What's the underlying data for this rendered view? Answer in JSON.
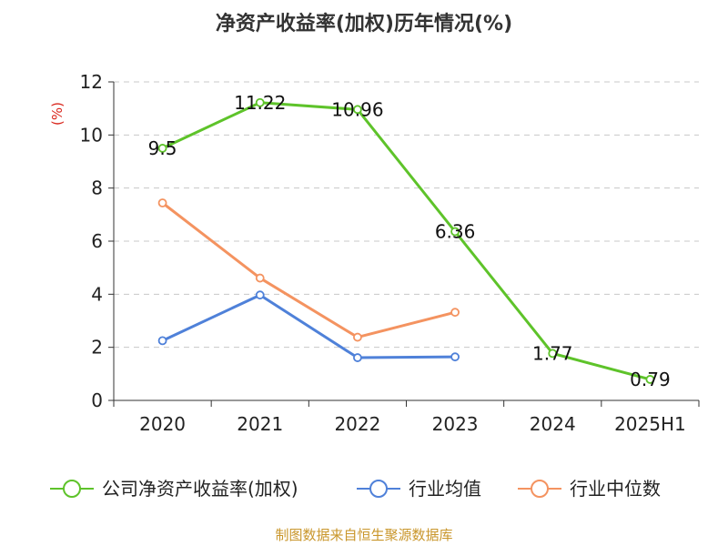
{
  "chart_data": {
    "type": "line",
    "title": "净资产收益率(加权)历年情况(%)",
    "ylabel": "(%)",
    "categories": [
      "2020",
      "2021",
      "2022",
      "2023",
      "2024",
      "2025H1"
    ],
    "ylim": [
      0,
      12
    ],
    "yticks": [
      0,
      2,
      4,
      6,
      8,
      10,
      12
    ],
    "grid": "horizontal-dashed",
    "legend": "bottom",
    "series": [
      {
        "name": "公司净资产收益率(加权)",
        "color": "#5ec32a",
        "values": [
          9.5,
          11.22,
          10.96,
          6.36,
          1.77,
          0.79
        ],
        "labels": [
          "9.5",
          "11.22",
          "10.96",
          "6.36",
          "1.77",
          "0.79"
        ]
      },
      {
        "name": "行业均值",
        "color": "#4f81d9",
        "values": [
          2.25,
          3.97,
          1.61,
          1.64,
          null,
          null
        ]
      },
      {
        "name": "行业中位数",
        "color": "#f49360",
        "values": [
          7.44,
          4.61,
          2.38,
          3.32,
          null,
          null
        ]
      }
    ],
    "source": "制图数据来自恒生聚源数据库"
  }
}
